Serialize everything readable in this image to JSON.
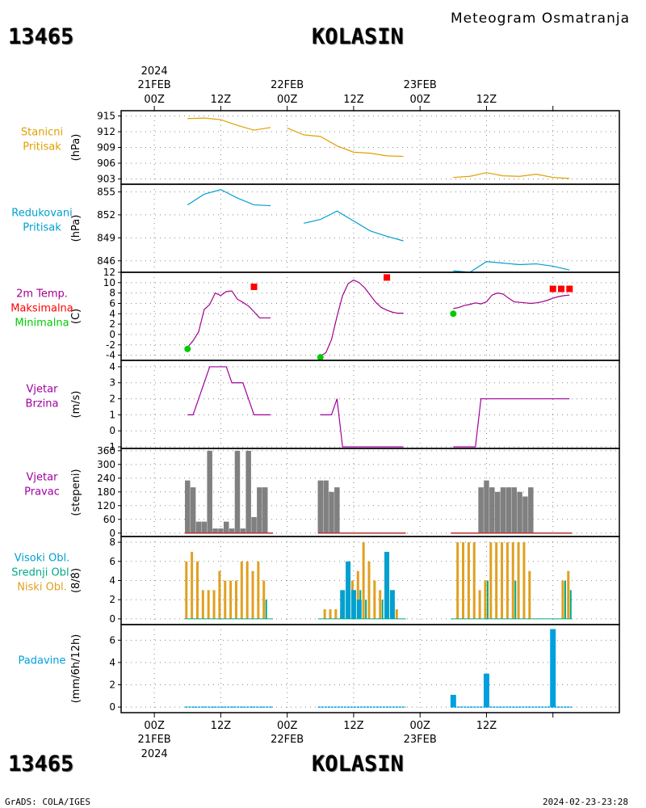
{
  "header": {
    "station_id": "13465",
    "station_name": "KOLASIN",
    "title": "Meteogram Osmatranja"
  },
  "time_axis": {
    "year": "2024",
    "top_dates": [
      "21FEB",
      "22FEB",
      "23FEB"
    ],
    "hours": [
      "00Z",
      "12Z",
      "00Z",
      "12Z",
      "00Z",
      "12Z"
    ],
    "bottom_dates": [
      "21FEB",
      "22FEB",
      "23FEB"
    ]
  },
  "footer": {
    "left": "GrADS: COLA/IGES",
    "right": "2024-02-23-23:28"
  },
  "colors": {
    "station_pressure": "#e0a000",
    "reduced_pressure": "#00a0d0",
    "temp_line": "#a0008c",
    "tmax": "#ff0000",
    "tmin": "#00cc00",
    "wind_speed": "#a000a0",
    "wind_dir": "#808080",
    "cloud_high": "#00a0d0",
    "cloud_mid": "#00aa88",
    "cloud_low": "#e0a020",
    "precip": "#00a0e0"
  },
  "chart_data": [
    {
      "type": "line",
      "id": "station_pressure",
      "label_lines": [
        "Stanicni",
        "Pritisak"
      ],
      "unit": "(hPa)",
      "ylim": [
        902,
        916
      ],
      "yticks": [
        903,
        906,
        909,
        912,
        915
      ],
      "x_hours": [
        6,
        9,
        12,
        15,
        18,
        21,
        24,
        27,
        30,
        33,
        36,
        39,
        42,
        45,
        48,
        54,
        57,
        60,
        63,
        66,
        69,
        72,
        75
      ],
      "x_gaps_after_hours": [
        21,
        45
      ],
      "y": [
        914.5,
        914.6,
        914.3,
        913.2,
        912.3,
        912.8,
        912.7,
        911.4,
        911.1,
        909.3,
        908.1,
        907.9,
        907.4,
        907.3,
        null,
        903.3,
        903.5,
        904.2,
        903.6,
        903.5,
        903.9,
        903.3,
        903.1
      ]
    },
    {
      "type": "line",
      "id": "reduced_pressure",
      "label_lines": [
        "Redukovani",
        "Pritisak"
      ],
      "unit": "(hPa)",
      "ylim": [
        844.5,
        856
      ],
      "yticks": [
        846,
        849,
        852,
        855
      ],
      "x_hours": [
        6,
        9,
        12,
        15,
        18,
        21,
        27,
        30,
        33,
        36,
        39,
        42,
        45,
        54,
        57,
        60,
        63,
        66,
        69,
        72,
        75
      ],
      "x_gaps_after_hours": [
        21,
        45
      ],
      "y": [
        853.3,
        854.7,
        855.3,
        854.2,
        853.3,
        853.2,
        850.9,
        851.4,
        852.5,
        851.2,
        849.9,
        849.2,
        848.6,
        844.7,
        844.5,
        845.9,
        845.7,
        845.5,
        845.6,
        845.3,
        844.8
      ]
    },
    {
      "type": "line",
      "id": "temperature",
      "label_lines": [
        "2m Temp.",
        "Maksimalna",
        "Minimalna"
      ],
      "unit": "(C)",
      "ylim": [
        -5,
        12
      ],
      "yticks": [
        -4,
        -2,
        0,
        2,
        4,
        6,
        8,
        10,
        12
      ],
      "x_hours": [
        6,
        7,
        8,
        9,
        10,
        11,
        12,
        13,
        14,
        15,
        16,
        17,
        18,
        19,
        20,
        21
      ],
      "y": [
        -2.5,
        -1.2,
        0.5,
        4.8,
        5.8,
        8.0,
        7.5,
        8.3,
        8.4,
        6.8,
        6.2,
        5.5,
        4.4,
        3.2,
        null,
        null
      ],
      "series": [
        {
          "name": "day1",
          "x_hours": [
            6,
            7,
            8,
            9,
            10,
            11,
            12,
            13,
            14,
            15,
            16,
            17,
            18,
            19,
            20,
            21
          ],
          "y": [
            -2.5,
            -1.2,
            0.5,
            4.8,
            5.8,
            8.0,
            7.5,
            8.3,
            8.4,
            6.8,
            6.2,
            5.5,
            4.4,
            3.2,
            3.2,
            3.2
          ]
        },
        {
          "name": "day2",
          "x_hours": [
            30,
            31,
            32,
            33,
            34,
            35,
            36,
            37,
            38,
            39,
            40,
            41,
            42,
            43,
            44,
            45
          ],
          "y": [
            -4.2,
            -3.5,
            -1.0,
            3.5,
            7.5,
            9.8,
            10.5,
            10.0,
            9.0,
            7.6,
            6.2,
            5.2,
            4.7,
            4.3,
            4.1,
            4.1
          ]
        },
        {
          "name": "day3",
          "x_hours": [
            54,
            55,
            56,
            57,
            58,
            59,
            60,
            61,
            62,
            63,
            64,
            65,
            66,
            67,
            68,
            69,
            70,
            71,
            72,
            73,
            74,
            75
          ],
          "y": [
            5.0,
            5.2,
            5.6,
            5.8,
            6.1,
            5.9,
            6.3,
            7.6,
            8.0,
            7.8,
            7.0,
            6.3,
            6.2,
            6.1,
            6.0,
            6.1,
            6.3,
            6.6,
            7.0,
            7.3,
            7.5,
            7.6
          ]
        }
      ],
      "tmax_points": [
        {
          "x_hours": 18,
          "y": 9.2
        },
        {
          "x_hours": 42,
          "y": 11.0
        },
        {
          "x_hours": 72,
          "y": 8.8
        },
        {
          "x_hours": 73.5,
          "y": 8.8
        },
        {
          "x_hours": 75,
          "y": 8.8
        }
      ],
      "tmin_points": [
        {
          "x_hours": 6,
          "y": -2.8
        },
        {
          "x_hours": 30,
          "y": -4.4
        },
        {
          "x_hours": 54,
          "y": 4.0
        }
      ]
    },
    {
      "type": "line",
      "id": "wind_speed",
      "label_lines": [
        "Vjetar",
        "Brzina"
      ],
      "unit": "(m/s)",
      "ylim": [
        -1.1,
        4.4
      ],
      "yticks": [
        -1,
        0,
        1,
        2,
        3,
        4
      ],
      "series": [
        {
          "name": "day1",
          "x_hours": [
            6,
            7,
            8,
            9,
            10,
            11,
            12,
            13,
            14,
            15,
            16,
            17,
            18,
            19,
            20,
            21
          ],
          "y": [
            1,
            1,
            2,
            3,
            4,
            4,
            4,
            4,
            3,
            3,
            3,
            2,
            1,
            1,
            1,
            1
          ]
        },
        {
          "name": "day2",
          "x_hours": [
            30,
            31,
            32,
            33,
            34,
            35,
            36,
            37,
            38,
            39,
            40,
            41,
            42,
            43,
            44,
            45
          ],
          "y": [
            1,
            1,
            1,
            2,
            -1,
            -1,
            -1,
            -1,
            -1,
            -1,
            -1,
            -1,
            -1,
            -1,
            -1,
            -1
          ]
        },
        {
          "name": "day3",
          "x_hours": [
            54,
            55,
            56,
            57,
            58,
            59,
            60,
            61,
            62,
            63,
            64,
            65,
            66,
            67,
            68,
            69,
            70,
            71,
            72,
            73,
            74,
            75
          ],
          "y": [
            -1,
            -1,
            -1,
            -1,
            -1,
            2,
            2,
            2,
            2,
            2,
            2,
            2,
            2,
            2,
            2,
            2,
            2,
            2,
            2,
            2,
            2,
            2
          ]
        }
      ]
    },
    {
      "type": "bar",
      "id": "wind_direction",
      "label_lines": [
        "Vjetar",
        "Pravac"
      ],
      "unit": "(stepeni)",
      "ylim": [
        -15,
        370
      ],
      "yticks": [
        0,
        60,
        120,
        180,
        240,
        300,
        360
      ],
      "x_hours": [
        6,
        7,
        8,
        9,
        10,
        11,
        12,
        13,
        14,
        15,
        16,
        17,
        18,
        19,
        20,
        21,
        30,
        31,
        32,
        33,
        34,
        35,
        36,
        37,
        38,
        39,
        40,
        41,
        42,
        43,
        44,
        45,
        54,
        55,
        56,
        57,
        58,
        59,
        60,
        61,
        62,
        63,
        64,
        65,
        66,
        67,
        68,
        69,
        70,
        71,
        72,
        73,
        74,
        75
      ],
      "values": [
        230,
        200,
        50,
        50,
        360,
        20,
        20,
        50,
        20,
        360,
        20,
        360,
        70,
        200,
        200,
        0,
        230,
        230,
        180,
        200,
        0,
        0,
        0,
        0,
        0,
        0,
        0,
        0,
        0,
        0,
        0,
        0,
        0,
        0,
        0,
        0,
        0,
        200,
        230,
        200,
        180,
        200,
        200,
        200,
        180,
        160,
        200,
        0,
        0,
        0,
        0,
        0,
        0,
        0
      ]
    },
    {
      "type": "bar",
      "id": "clouds",
      "label_lines": [
        "Visoki Obl.",
        "Srednji Obl.",
        "Niski Obl."
      ],
      "unit": "(8/8)",
      "ylim": [
        -0.6,
        8.6
      ],
      "yticks": [
        0,
        2,
        4,
        6,
        8
      ],
      "x_hours": [
        6,
        7,
        8,
        9,
        10,
        11,
        12,
        13,
        14,
        15,
        16,
        17,
        18,
        19,
        20,
        21,
        30,
        31,
        32,
        33,
        34,
        35,
        36,
        37,
        38,
        39,
        40,
        41,
        42,
        43,
        44,
        45,
        54,
        55,
        56,
        57,
        58,
        59,
        60,
        61,
        62,
        63,
        64,
        65,
        66,
        67,
        68,
        69,
        70,
        71,
        72,
        73,
        74,
        75
      ],
      "series": [
        {
          "name": "Niski Obl.",
          "values": [
            6,
            7,
            6,
            3,
            3,
            3,
            5,
            4,
            4,
            4,
            6,
            6,
            5,
            6,
            4,
            0,
            0,
            1,
            1,
            1,
            1,
            2,
            4,
            5,
            8,
            6,
            4,
            3,
            7,
            3,
            1,
            0,
            0,
            8,
            8,
            8,
            8,
            3,
            4,
            8,
            8,
            8,
            8,
            8,
            8,
            8,
            5,
            0,
            0,
            0,
            0,
            0,
            4,
            5
          ]
        },
        {
          "name": "Srednji Obl.",
          "values": [
            0,
            0,
            0,
            0,
            0,
            0,
            0,
            0,
            0,
            0,
            0,
            0,
            0,
            0,
            2,
            0,
            0,
            0,
            0,
            0,
            0,
            3,
            3,
            3,
            2,
            0,
            0,
            2,
            0,
            3,
            0,
            0,
            0,
            0,
            0,
            0,
            0,
            0,
            4,
            0,
            0,
            0,
            0,
            4,
            0,
            0,
            0,
            0,
            0,
            0,
            0,
            0,
            4,
            3
          ]
        },
        {
          "name": "Visoki Obl.",
          "values": [
            0,
            0,
            0,
            0,
            0,
            0,
            0,
            0,
            0,
            0,
            0,
            0,
            0,
            0,
            0,
            0,
            0,
            0,
            0,
            0,
            3,
            6,
            3,
            2,
            0,
            0,
            0,
            0,
            7,
            3,
            0,
            0,
            0,
            0,
            0,
            0,
            0,
            0,
            0,
            0,
            0,
            0,
            0,
            0,
            0,
            0,
            0,
            0,
            0,
            0,
            0,
            0,
            0,
            0
          ]
        }
      ]
    },
    {
      "type": "bar",
      "id": "precipitation",
      "label_lines": [
        "Padavine"
      ],
      "unit": "(mm/6h/12h)",
      "ylim": [
        -0.5,
        7.4
      ],
      "yticks": [
        0,
        2,
        4,
        6
      ],
      "x_hours": [
        54,
        60,
        72
      ],
      "values": [
        1.1,
        3.0,
        7.0
      ],
      "trace_ranges_hours": [
        [
          6,
          21
        ],
        [
          30,
          45
        ],
        [
          54,
          75
        ]
      ]
    }
  ]
}
